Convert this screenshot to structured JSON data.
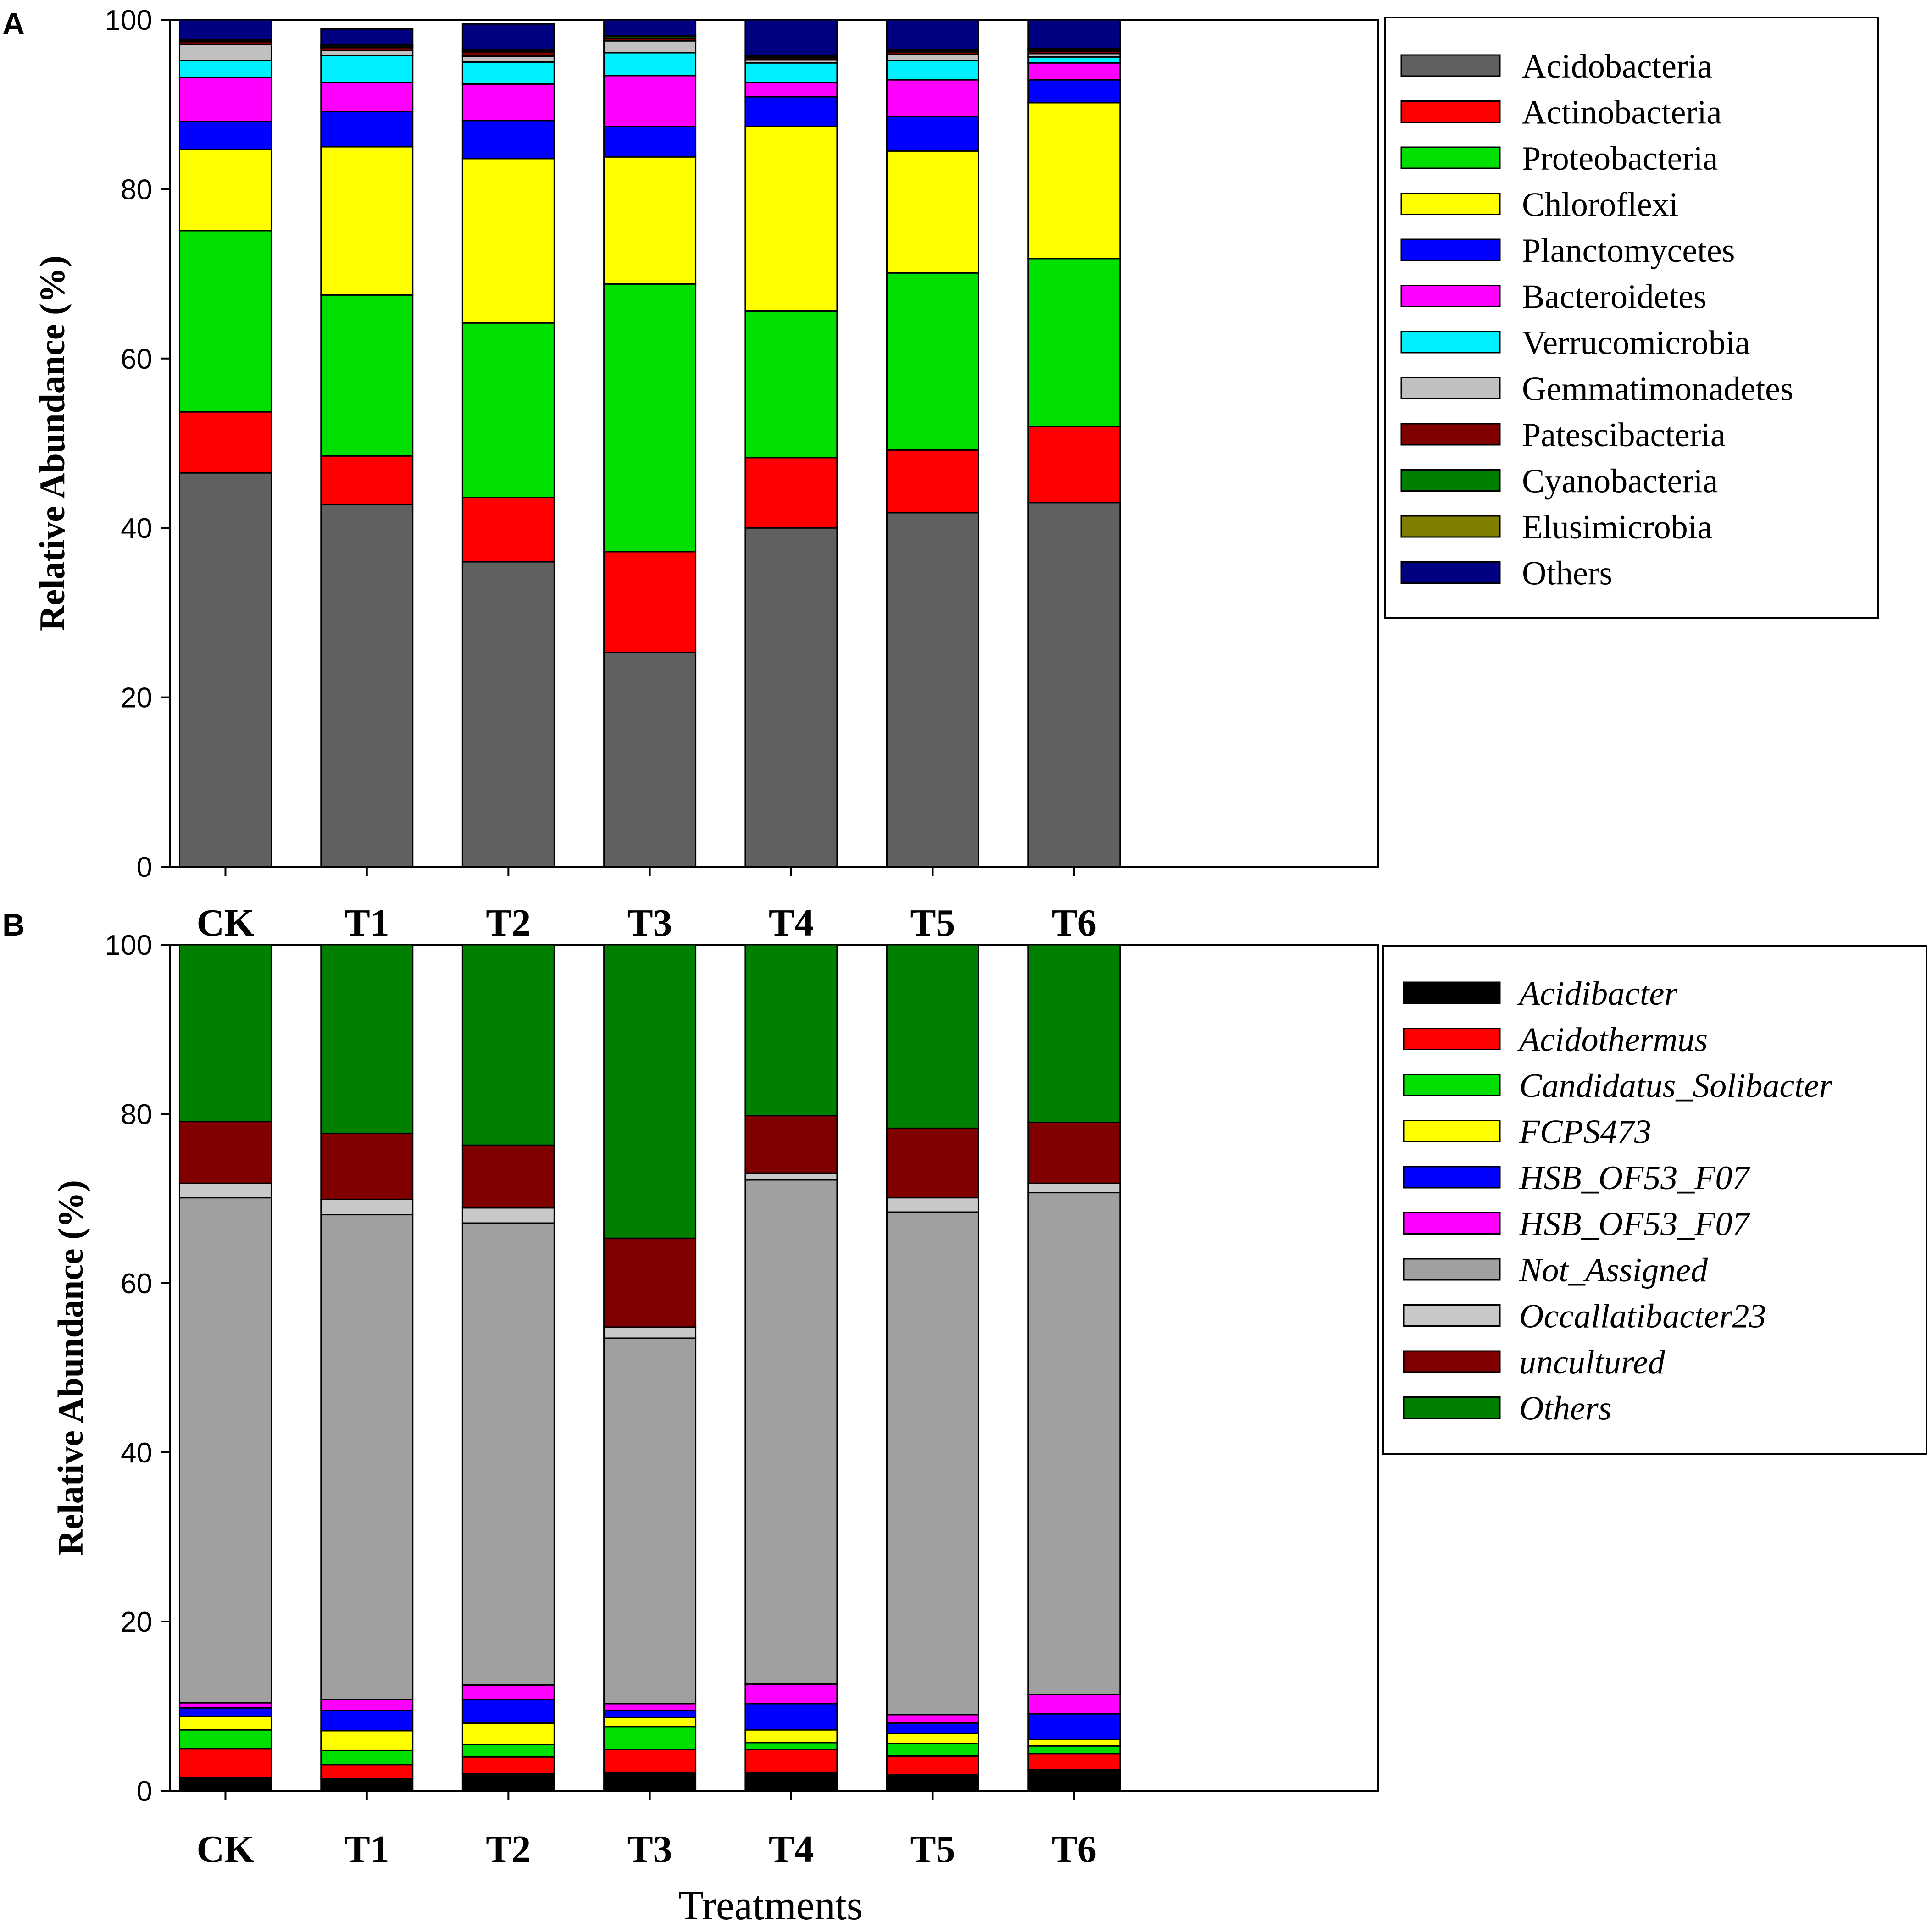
{
  "x_axis_title": "Treatments",
  "chart_data": [
    {
      "type": "bar",
      "stacked": true,
      "panel": "A",
      "ylabel": "Relative Abundance (%)",
      "ylim": [
        0,
        100
      ],
      "yticks": [
        0,
        20,
        40,
        60,
        80,
        100
      ],
      "legend_position": "right",
      "legend_italic": false,
      "categories": [
        "CK",
        "T1",
        "T2",
        "T3",
        "T4",
        "T5",
        "T6"
      ],
      "series": [
        {
          "name": "Acidobacteria",
          "color": "#606060",
          "values": [
            46.5,
            42.8,
            36.0,
            25.3,
            40.0,
            41.8,
            43.0
          ]
        },
        {
          "name": "Actinobacteria",
          "color": "#FF0000",
          "values": [
            7.2,
            5.7,
            7.6,
            11.9,
            8.3,
            7.4,
            9.0
          ]
        },
        {
          "name": "Proteobacteria",
          "color": "#00E000",
          "values": [
            21.4,
            19.0,
            20.6,
            31.6,
            17.3,
            20.9,
            19.8
          ]
        },
        {
          "name": "Chloroflexi",
          "color": "#FFFF00",
          "values": [
            9.6,
            17.5,
            19.4,
            15.0,
            21.8,
            14.4,
            18.4
          ]
        },
        {
          "name": "Planctomycetes",
          "color": "#0000FF",
          "values": [
            3.3,
            4.2,
            4.5,
            3.6,
            3.5,
            4.1,
            2.7
          ]
        },
        {
          "name": "Bacteroidetes",
          "color": "#FF00FF",
          "values": [
            5.2,
            3.4,
            4.3,
            6.0,
            1.7,
            4.3,
            2.0
          ]
        },
        {
          "name": "Verrucomicrobia",
          "color": "#00F0FF",
          "values": [
            2.0,
            3.2,
            2.6,
            2.7,
            2.3,
            2.3,
            0.7
          ]
        },
        {
          "name": "Gemmatimonadetes",
          "color": "#C0C0C0",
          "values": [
            1.9,
            0.6,
            0.7,
            1.4,
            0.4,
            0.7,
            0.4
          ]
        },
        {
          "name": "Patescibacteria",
          "color": "#800000",
          "values": [
            0.3,
            0.3,
            0.5,
            0.3,
            0.2,
            0.3,
            0.3
          ]
        },
        {
          "name": "Cyanobacteria",
          "color": "#008000",
          "values": [
            0.1,
            0.2,
            0.2,
            0.2,
            0.2,
            0.2,
            0.2
          ]
        },
        {
          "name": "Elusimicrobia",
          "color": "#808000",
          "values": [
            0.1,
            0.1,
            0.1,
            0.1,
            0.1,
            0.1,
            0.1
          ]
        },
        {
          "name": "Others",
          "color": "#000080",
          "values": [
            2.4,
            1.9,
            3.0,
            1.9,
            4.2,
            3.5,
            3.4
          ]
        }
      ]
    },
    {
      "type": "bar",
      "stacked": true,
      "panel": "B",
      "ylabel": "Relative Abundance (%)",
      "ylim": [
        0,
        100
      ],
      "yticks": [
        0,
        20,
        40,
        60,
        80,
        100
      ],
      "legend_position": "right",
      "legend_italic": true,
      "categories": [
        "CK",
        "T1",
        "T2",
        "T3",
        "T4",
        "T5",
        "T6"
      ],
      "series": [
        {
          "name": "Acidibacter",
          "color": "#000000",
          "values": [
            1.6,
            1.4,
            2.0,
            2.2,
            2.2,
            1.9,
            2.5
          ]
        },
        {
          "name": "Acidothermus",
          "color": "#FF0000",
          "values": [
            3.4,
            1.7,
            2.0,
            2.7,
            2.7,
            2.2,
            1.9
          ]
        },
        {
          "name": "Candidatus_Solibacter",
          "color": "#00E000",
          "values": [
            2.2,
            1.7,
            1.5,
            2.7,
            0.8,
            1.5,
            0.9
          ]
        },
        {
          "name": "FCPS473",
          "color": "#FFFF00",
          "values": [
            1.6,
            2.3,
            2.5,
            1.1,
            1.5,
            1.2,
            0.8
          ]
        },
        {
          "name": "HSB_OF53_F07",
          "color": "#0000FF",
          "values": [
            1.0,
            2.4,
            2.8,
            0.8,
            3.1,
            1.2,
            3.0
          ]
        },
        {
          "name": "HSB_OF53_F07",
          "color": "#FF00FF",
          "values": [
            0.6,
            1.3,
            1.7,
            0.8,
            2.3,
            1.0,
            2.3
          ]
        },
        {
          "name": "Not_Assigned",
          "color": "#A0A0A0",
          "values": [
            59.7,
            57.3,
            54.6,
            43.2,
            59.6,
            59.4,
            59.3
          ]
        },
        {
          "name": "Occallatibacter23",
          "color": "#C8C8C8",
          "values": [
            1.7,
            1.8,
            1.8,
            1.3,
            0.8,
            1.7,
            1.1
          ]
        },
        {
          "name": "uncultured",
          "color": "#800000",
          "values": [
            7.3,
            7.8,
            7.4,
            10.5,
            6.8,
            8.2,
            7.2
          ]
        },
        {
          "name": "Others",
          "color": "#008000",
          "values": [
            20.9,
            22.3,
            23.7,
            34.7,
            20.2,
            21.7,
            21.0
          ]
        }
      ]
    }
  ]
}
